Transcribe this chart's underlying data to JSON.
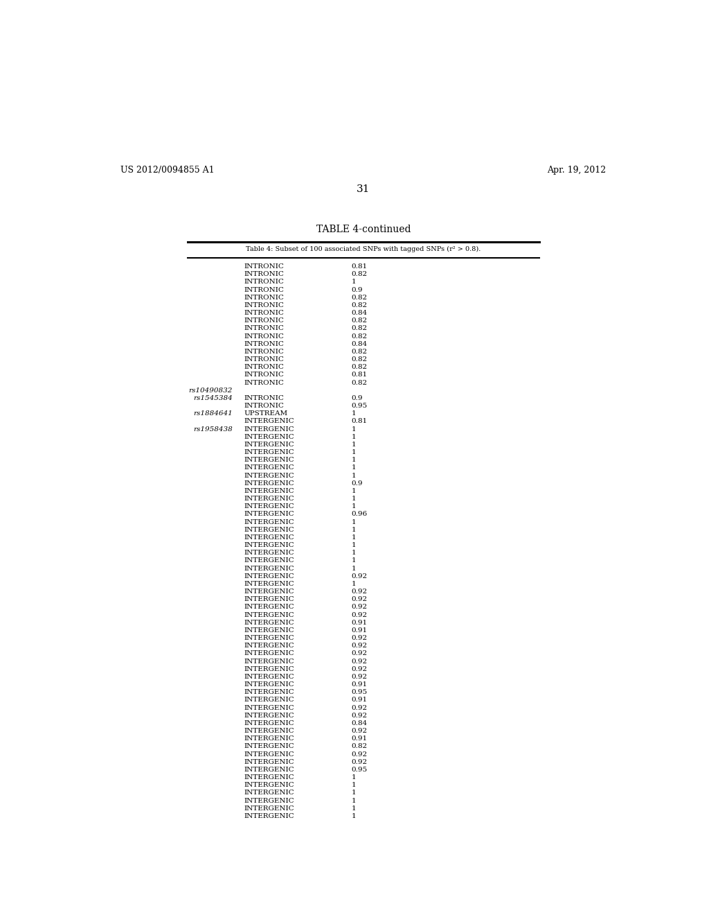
{
  "header_left": "US 2012/0094855 A1",
  "header_right": "Apr. 19, 2012",
  "page_number": "31",
  "table_title": "TABLE 4-continued",
  "table_subtitle": "Table 4: Subset of 100 associated SNPs with tagged SNPs (r² > 0.8).",
  "rows": [
    {
      "col1": "",
      "col2": "INTRONIC",
      "col3": "0.81"
    },
    {
      "col1": "",
      "col2": "INTRONIC",
      "col3": "0.82"
    },
    {
      "col1": "",
      "col2": "INTRONIC",
      "col3": "1"
    },
    {
      "col1": "",
      "col2": "INTRONIC",
      "col3": "0.9"
    },
    {
      "col1": "",
      "col2": "INTRONIC",
      "col3": "0.82"
    },
    {
      "col1": "",
      "col2": "INTRONIC",
      "col3": "0.82"
    },
    {
      "col1": "",
      "col2": "INTRONIC",
      "col3": "0.84"
    },
    {
      "col1": "",
      "col2": "INTRONIC",
      "col3": "0.82"
    },
    {
      "col1": "",
      "col2": "INTRONIC",
      "col3": "0.82"
    },
    {
      "col1": "",
      "col2": "INTRONIC",
      "col3": "0.82"
    },
    {
      "col1": "",
      "col2": "INTRONIC",
      "col3": "0.84"
    },
    {
      "col1": "",
      "col2": "INTRONIC",
      "col3": "0.82"
    },
    {
      "col1": "",
      "col2": "INTRONIC",
      "col3": "0.82"
    },
    {
      "col1": "",
      "col2": "INTRONIC",
      "col3": "0.82"
    },
    {
      "col1": "",
      "col2": "INTRONIC",
      "col3": "0.81"
    },
    {
      "col1": "",
      "col2": "INTRONIC",
      "col3": "0.82"
    },
    {
      "col1": "rs10490832",
      "col2": "",
      "col3": ""
    },
    {
      "col1": "rs1545384",
      "col2": "INTRONIC",
      "col3": "0.9"
    },
    {
      "col1": "",
      "col2": "INTRONIC",
      "col3": "0.95"
    },
    {
      "col1": "rs1884641",
      "col2": "UPSTREAM",
      "col3": "1"
    },
    {
      "col1": "",
      "col2": "INTERGENIC",
      "col3": "0.81"
    },
    {
      "col1": "rs1958438",
      "col2": "INTERGENIC",
      "col3": "1"
    },
    {
      "col1": "",
      "col2": "INTERGENIC",
      "col3": "1"
    },
    {
      "col1": "",
      "col2": "INTERGENIC",
      "col3": "1"
    },
    {
      "col1": "",
      "col2": "INTERGENIC",
      "col3": "1"
    },
    {
      "col1": "",
      "col2": "INTERGENIC",
      "col3": "1"
    },
    {
      "col1": "",
      "col2": "INTERGENIC",
      "col3": "1"
    },
    {
      "col1": "",
      "col2": "INTERGENIC",
      "col3": "1"
    },
    {
      "col1": "",
      "col2": "INTERGENIC",
      "col3": "0.9"
    },
    {
      "col1": "",
      "col2": "INTERGENIC",
      "col3": "1"
    },
    {
      "col1": "",
      "col2": "INTERGENIC",
      "col3": "1"
    },
    {
      "col1": "",
      "col2": "INTERGENIC",
      "col3": "1"
    },
    {
      "col1": "",
      "col2": "INTERGENIC",
      "col3": "0.96"
    },
    {
      "col1": "",
      "col2": "INTERGENIC",
      "col3": "1"
    },
    {
      "col1": "",
      "col2": "INTERGENIC",
      "col3": "1"
    },
    {
      "col1": "",
      "col2": "INTERGENIC",
      "col3": "1"
    },
    {
      "col1": "",
      "col2": "INTERGENIC",
      "col3": "1"
    },
    {
      "col1": "",
      "col2": "INTERGENIC",
      "col3": "1"
    },
    {
      "col1": "",
      "col2": "INTERGENIC",
      "col3": "1"
    },
    {
      "col1": "",
      "col2": "INTERGENIC",
      "col3": "1"
    },
    {
      "col1": "",
      "col2": "INTERGENIC",
      "col3": "0.92"
    },
    {
      "col1": "",
      "col2": "INTERGENIC",
      "col3": "1"
    },
    {
      "col1": "",
      "col2": "INTERGENIC",
      "col3": "0.92"
    },
    {
      "col1": "",
      "col2": "INTERGENIC",
      "col3": "0.92"
    },
    {
      "col1": "",
      "col2": "INTERGENIC",
      "col3": "0.92"
    },
    {
      "col1": "",
      "col2": "INTERGENIC",
      "col3": "0.92"
    },
    {
      "col1": "",
      "col2": "INTERGENIC",
      "col3": "0.91"
    },
    {
      "col1": "",
      "col2": "INTERGENIC",
      "col3": "0.91"
    },
    {
      "col1": "",
      "col2": "INTERGENIC",
      "col3": "0.92"
    },
    {
      "col1": "",
      "col2": "INTERGENIC",
      "col3": "0.92"
    },
    {
      "col1": "",
      "col2": "INTERGENIC",
      "col3": "0.92"
    },
    {
      "col1": "",
      "col2": "INTERGENIC",
      "col3": "0.92"
    },
    {
      "col1": "",
      "col2": "INTERGENIC",
      "col3": "0.92"
    },
    {
      "col1": "",
      "col2": "INTERGENIC",
      "col3": "0.92"
    },
    {
      "col1": "",
      "col2": "INTERGENIC",
      "col3": "0.91"
    },
    {
      "col1": "",
      "col2": "INTERGENIC",
      "col3": "0.95"
    },
    {
      "col1": "",
      "col2": "INTERGENIC",
      "col3": "0.91"
    },
    {
      "col1": "",
      "col2": "INTERGENIC",
      "col3": "0.92"
    },
    {
      "col1": "",
      "col2": "INTERGENIC",
      "col3": "0.92"
    },
    {
      "col1": "",
      "col2": "INTERGENIC",
      "col3": "0.84"
    },
    {
      "col1": "",
      "col2": "INTERGENIC",
      "col3": "0.92"
    },
    {
      "col1": "",
      "col2": "INTERGENIC",
      "col3": "0.91"
    },
    {
      "col1": "",
      "col2": "INTERGENIC",
      "col3": "0.82"
    },
    {
      "col1": "",
      "col2": "INTERGENIC",
      "col3": "0.92"
    },
    {
      "col1": "",
      "col2": "INTERGENIC",
      "col3": "0.92"
    },
    {
      "col1": "",
      "col2": "INTERGENIC",
      "col3": "0.95"
    },
    {
      "col1": "",
      "col2": "INTERGENIC",
      "col3": "1"
    },
    {
      "col1": "",
      "col2": "INTERGENIC",
      "col3": "1"
    },
    {
      "col1": "",
      "col2": "INTERGENIC",
      "col3": "1"
    },
    {
      "col1": "",
      "col2": "INTERGENIC",
      "col3": "1"
    },
    {
      "col1": "",
      "col2": "INTERGENIC",
      "col3": "1"
    },
    {
      "col1": "",
      "col2": "INTERGENIC",
      "col3": "1"
    }
  ],
  "bg_color": "#ffffff",
  "text_color": "#000000",
  "font_size_header": 9,
  "font_size_body": 7.5,
  "font_size_title": 10,
  "font_size_subtitle": 7,
  "font_size_page": 11
}
